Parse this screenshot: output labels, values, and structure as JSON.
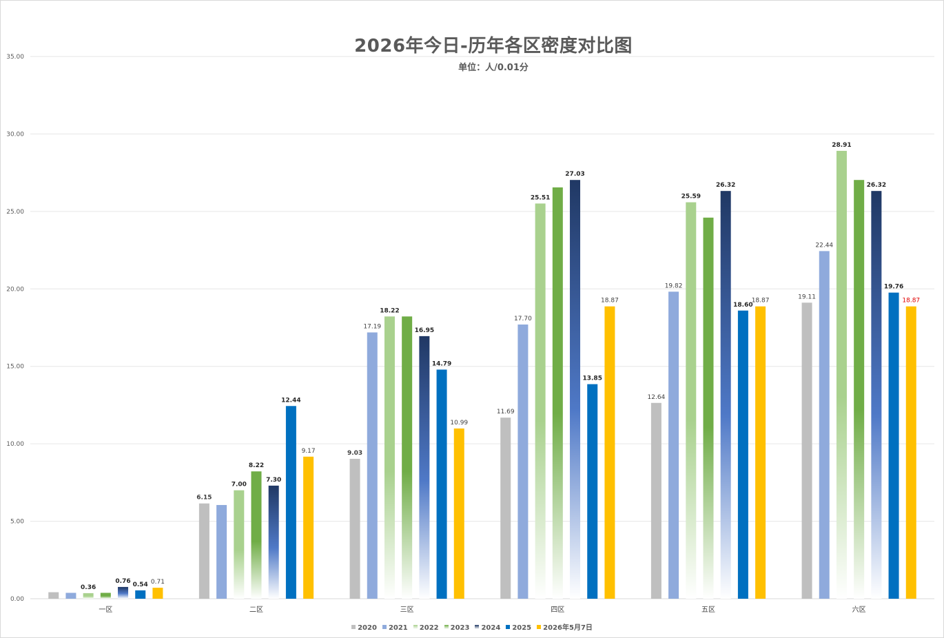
{
  "chart_data": {
    "type": "bar",
    "title": "2026年今日-历年各区密度对比图",
    "subtitle": "单位：人/0.01分",
    "categories": [
      "一区",
      "二区",
      "三区",
      "四区",
      "五区",
      "六区"
    ],
    "ylim": [
      0,
      35
    ],
    "yticks": [
      "0.00",
      "5.00",
      "10.00",
      "15.00",
      "20.00",
      "25.00",
      "30.00",
      "35.00"
    ],
    "grid": true,
    "legend_position": "bottom",
    "series": [
      {
        "name": "2020",
        "color": "#bfbfbf",
        "fill": "solid",
        "values": [
          0.42,
          6.15,
          9.03,
          11.69,
          12.64,
          19.11
        ],
        "labels": [
          "",
          "6.15",
          "9.03",
          "11.69",
          "12.64",
          "19.11"
        ]
      },
      {
        "name": "2021",
        "color": "#8faadc",
        "fill": "solid",
        "values": [
          0.38,
          6.05,
          17.19,
          17.7,
          19.82,
          22.44
        ],
        "labels": [
          "",
          "",
          "17.19",
          "17.70",
          "19.82",
          "22.44"
        ]
      },
      {
        "name": "2022",
        "color": "#a9d18e",
        "fill": "gradient",
        "values": [
          0.36,
          7.0,
          18.22,
          25.51,
          25.59,
          28.91
        ],
        "labels": [
          "0.36",
          "7.00",
          "18.22",
          "25.51",
          "25.59",
          "28.91"
        ]
      },
      {
        "name": "2023",
        "color": "#70ad47",
        "fill": "gradient",
        "values": [
          0.38,
          8.22,
          18.22,
          26.55,
          24.6,
          27.03
        ],
        "labels": [
          "",
          "8.22",
          "",
          "",
          "",
          ""
        ]
      },
      {
        "name": "2024",
        "color": "#203864",
        "fill": "gradient",
        "values": [
          0.76,
          7.3,
          16.95,
          27.03,
          26.32,
          26.32
        ],
        "labels": [
          "0.76",
          "7.30",
          "16.95",
          "27.03",
          "26.32",
          "26.32"
        ]
      },
      {
        "name": "2025",
        "color": "#0070c0",
        "fill": "solid",
        "values": [
          0.54,
          12.44,
          14.79,
          13.85,
          18.6,
          19.76
        ],
        "labels": [
          "0.54",
          "12.44",
          "14.79",
          "13.85",
          "18.60",
          "19.76"
        ]
      },
      {
        "name": "2026年5月7日",
        "color": "#ffc000",
        "fill": "solid",
        "values": [
          0.71,
          9.17,
          10.99,
          18.87,
          18.87,
          18.87
        ],
        "labels": [
          "0.71",
          "9.17",
          "10.99",
          "18.87",
          "18.87",
          "18.87"
        ]
      }
    ]
  }
}
